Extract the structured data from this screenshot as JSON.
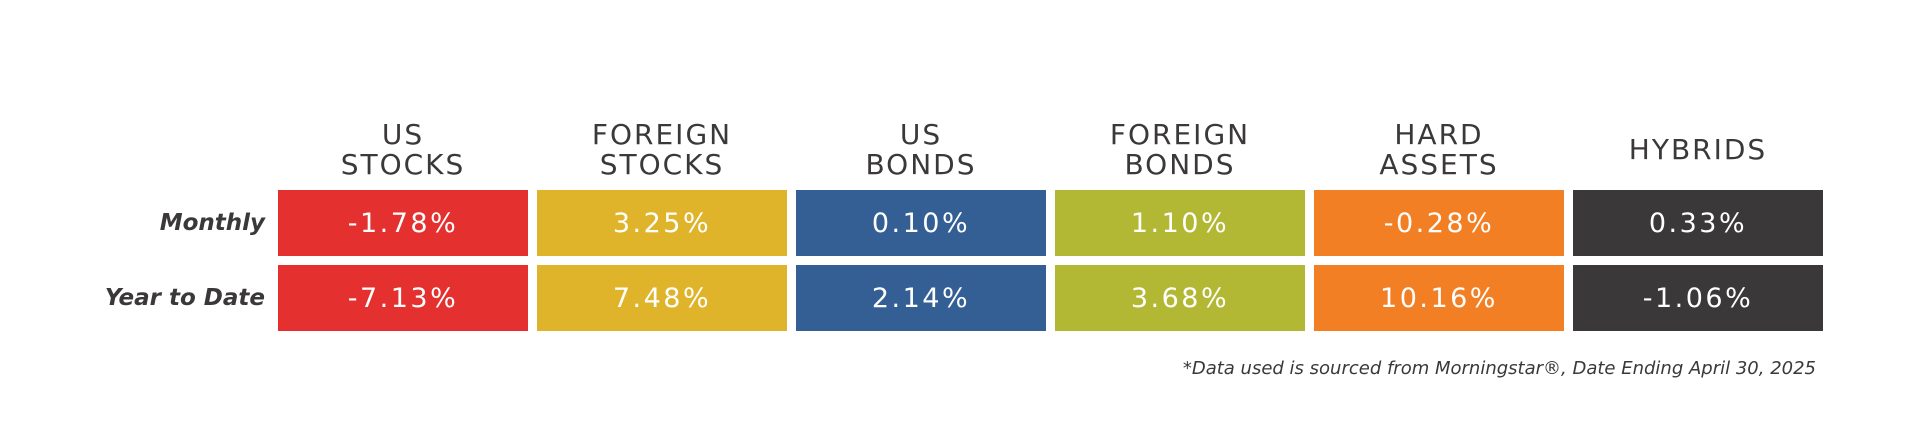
{
  "chart_data": {
    "type": "table",
    "columns": [
      {
        "line1": "US",
        "line2": "STOCKS",
        "color": "#e4302e"
      },
      {
        "line1": "FOREIGN",
        "line2": "STOCKS",
        "color": "#dfb42b"
      },
      {
        "line1": "US",
        "line2": "BONDS",
        "color": "#345f95"
      },
      {
        "line1": "FOREIGN",
        "line2": "BONDS",
        "color": "#b3b834"
      },
      {
        "line1": "HARD",
        "line2": "ASSETS",
        "color": "#f37f24"
      },
      {
        "line1": "HYBRIDS",
        "line2": "",
        "color": "#3b383a"
      }
    ],
    "rows": [
      {
        "label": "Monthly",
        "values": [
          "-1.78%",
          "3.25%",
          "0.10%",
          "1.10%",
          "-0.28%",
          "0.33%"
        ]
      },
      {
        "label": "Year to Date",
        "values": [
          "-7.13%",
          "7.48%",
          "2.14%",
          "3.68%",
          "10.16%",
          "-1.06%"
        ]
      }
    ],
    "numeric_values": {
      "Monthly": [
        -1.78,
        3.25,
        0.1,
        1.1,
        -0.28,
        0.33
      ],
      "Year to Date": [
        -7.13,
        7.48,
        2.14,
        3.68,
        10.16,
        -1.06
      ]
    },
    "footnote": "*Data used is sourced from Morningstar®, Date Ending April 30, 2025"
  }
}
